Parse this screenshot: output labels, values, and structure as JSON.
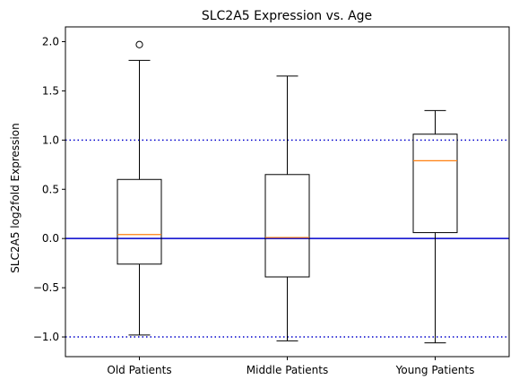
{
  "chart_data": {
    "type": "box",
    "title": "SLC2A5 Expression vs. Age",
    "xlabel": "",
    "ylabel": "SLC2A5 log2fold Expression",
    "ylim": [
      -1.2,
      2.15
    ],
    "yticks": [
      -1.0,
      -0.5,
      0.0,
      0.5,
      1.0,
      1.5,
      2.0
    ],
    "ytick_labels": [
      "−1.0",
      "−0.5",
      "0.0",
      "0.5",
      "1.0",
      "1.5",
      "2.0"
    ],
    "categories": [
      "Old Patients",
      "Middle Patients",
      "Young Patients"
    ],
    "boxes": [
      {
        "whisker_low": -0.98,
        "q1": -0.26,
        "median": 0.04,
        "q3": 0.6,
        "whisker_high": 1.81,
        "outliers": [
          1.97
        ]
      },
      {
        "whisker_low": -1.04,
        "q1": -0.39,
        "median": 0.01,
        "q3": 0.65,
        "whisker_high": 1.65,
        "outliers": []
      },
      {
        "whisker_low": -1.06,
        "q1": 0.06,
        "median": 0.79,
        "q3": 1.06,
        "whisker_high": 1.3,
        "outliers": []
      }
    ],
    "reference_lines": [
      {
        "y": 1.0,
        "style": "dotted",
        "color": "#0000cc"
      },
      {
        "y": 0.0,
        "style": "solid",
        "color": "#0000cc"
      },
      {
        "y": -1.0,
        "style": "dotted",
        "color": "#0000cc"
      }
    ],
    "colors": {
      "box": "#000000",
      "median": "#ff7f0e",
      "reference": "#0000cc"
    },
    "grid": false,
    "legend": "none"
  }
}
